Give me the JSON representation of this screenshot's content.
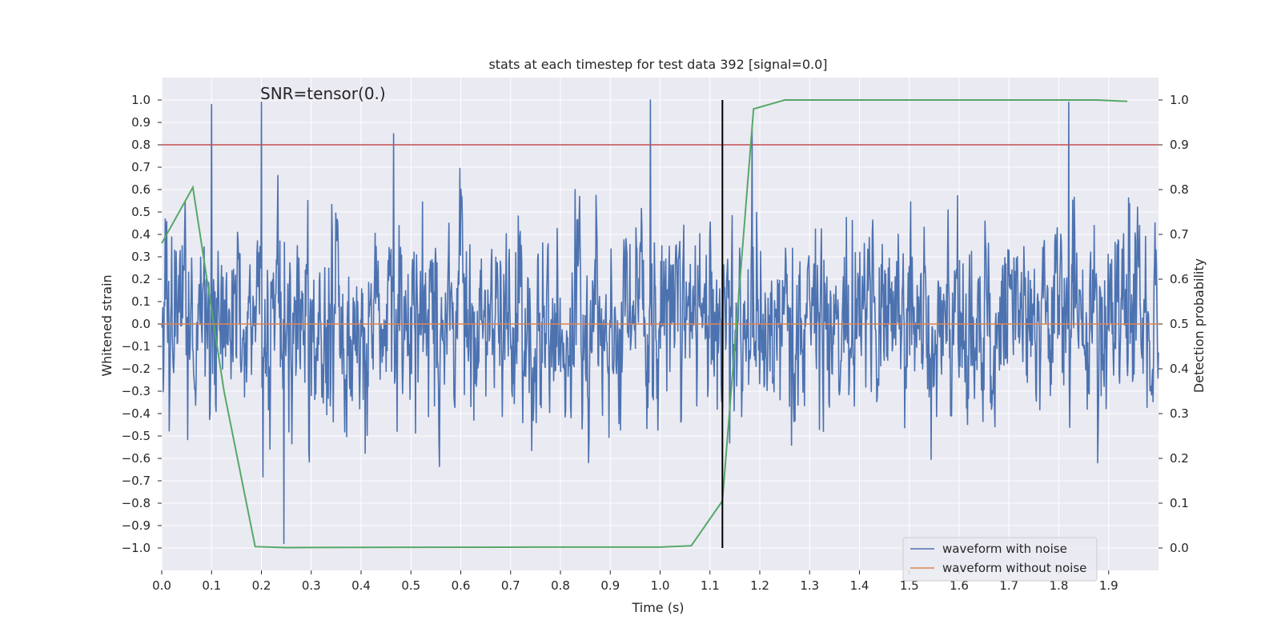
{
  "chart_data": {
    "type": "line",
    "title": "stats at each timestep for test data 392 [signal=0.0]",
    "annotation": "SNR=tensor(0.)",
    "xlabel": "Time (s)",
    "ylabel_left": "Whitened strain",
    "ylabel_right": "Detection probability",
    "xlim": [
      0.0,
      2.0
    ],
    "ylim_left": [
      -1.1,
      1.1
    ],
    "ylim_right": [
      -0.05,
      1.05
    ],
    "x_ticks": [
      "0.0",
      "0.1",
      "0.2",
      "0.3",
      "0.4",
      "0.5",
      "0.6",
      "0.7",
      "0.8",
      "0.9",
      "1.0",
      "1.1",
      "1.2",
      "1.3",
      "1.4",
      "1.5",
      "1.6",
      "1.7",
      "1.8",
      "1.9"
    ],
    "y_left_ticks": [
      "1.0",
      "0.9",
      "0.8",
      "0.7",
      "0.6",
      "0.5",
      "0.4",
      "0.3",
      "0.2",
      "0.1",
      "0.0",
      "−0.1",
      "−0.2",
      "−0.3",
      "−0.4",
      "−0.5",
      "−0.6",
      "−0.7",
      "−0.8",
      "−0.9",
      "−1.0"
    ],
    "y_right_ticks": [
      "1.0",
      "0.9",
      "0.8",
      "0.7",
      "0.6",
      "0.5",
      "0.4",
      "0.3",
      "0.2",
      "0.1",
      "0.0"
    ],
    "noise_spikes": [
      {
        "t": 0.1,
        "v": 0.98
      },
      {
        "t": 0.2,
        "v": 0.99
      },
      {
        "t": 0.245,
        "v": -0.98
      },
      {
        "t": 0.465,
        "v": 0.85
      },
      {
        "t": 0.98,
        "v": 1.0
      },
      {
        "t": 1.185,
        "v": 0.88
      },
      {
        "t": 1.82,
        "v": 0.99
      }
    ],
    "noise_seed": 392,
    "noise_samples": 2000,
    "series": [
      {
        "name": "waveform with noise",
        "axis": "left",
        "color": "#4c72b0"
      },
      {
        "name": "waveform without noise",
        "axis": "left",
        "color": "#dd8452",
        "x": [
          0.0,
          2.0
        ],
        "y": [
          0.0,
          0.0
        ]
      },
      {
        "name": "detection probability",
        "axis": "right",
        "color": "#55a868",
        "x": [
          0.0,
          0.0625,
          0.125,
          0.1875,
          0.25,
          0.75,
          1.0,
          1.0625,
          1.125,
          1.1875,
          1.25,
          1.875,
          1.9375
        ],
        "y": [
          0.68,
          0.805,
          0.35,
          0.003,
          0.001,
          0.002,
          0.002,
          0.005,
          0.105,
          0.98,
          1.0,
          1.0,
          0.997
        ]
      }
    ],
    "threshold": {
      "axis": "right",
      "value": 0.9,
      "color": "#c44e52"
    },
    "vline": {
      "t": 1.125,
      "ymin": 0.0,
      "ymax": 1.0,
      "axis": "right",
      "color": "#000000"
    },
    "legend_location": "lower right",
    "legend_entries": [
      {
        "label": "waveform with noise",
        "color": "#4c72b0"
      },
      {
        "label": "waveform without noise",
        "color": "#dd8452"
      }
    ],
    "plot_background": "#eaeaf2",
    "grid": true,
    "grid_color": "#ffffff"
  }
}
